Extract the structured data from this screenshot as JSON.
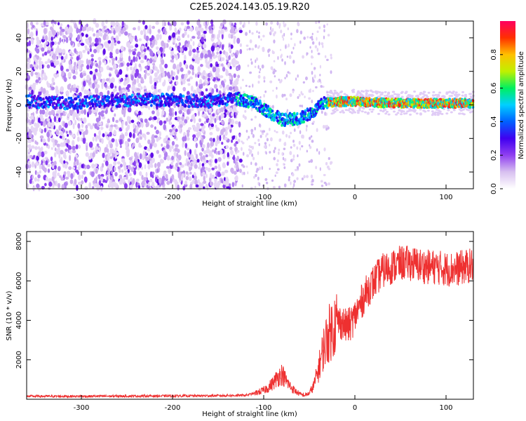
{
  "title": "C2E5.2024.143.05.19.R20",
  "chart_data": [
    {
      "type": "heatmap",
      "xlabel": "Height of straight line (km)",
      "ylabel": "Frequency (Hz)",
      "xlim": [
        -360,
        130
      ],
      "ylim": [
        -50,
        50
      ],
      "xticks": [
        -300,
        -200,
        -100,
        0,
        100
      ],
      "yticks": [
        -40,
        -20,
        0,
        20,
        40
      ],
      "colorbar": {
        "label": "Normalized spectral amplitude",
        "range": [
          0,
          1
        ],
        "ticks": [
          0.0,
          0.2,
          0.4,
          0.6,
          0.8
        ],
        "colors": [
          "#ffffff",
          "#d8c0f0",
          "#9040f0",
          "#4000f0",
          "#0060ff",
          "#00d0ff",
          "#00f060",
          "#c0f000",
          "#ffc000",
          "#ff3000",
          "#ff0060"
        ]
      },
      "ridge": [
        [
          -360,
          2
        ],
        [
          -320,
          1
        ],
        [
          -280,
          2
        ],
        [
          -240,
          3
        ],
        [
          -200,
          3
        ],
        [
          -160,
          2
        ],
        [
          -130,
          4
        ],
        [
          -110,
          1
        ],
        [
          -95,
          -4
        ],
        [
          -80,
          -9
        ],
        [
          -60,
          -8
        ],
        [
          -45,
          -4
        ],
        [
          -35,
          1
        ],
        [
          -20,
          2
        ],
        [
          0,
          2
        ],
        [
          40,
          1
        ],
        [
          80,
          1
        ],
        [
          130,
          1
        ]
      ]
    },
    {
      "type": "line",
      "xlabel": "Height of straight line (km)",
      "ylabel": "SNR (10 * v/v)",
      "xlim": [
        -360,
        130
      ],
      "ylim": [
        0,
        8500
      ],
      "xticks": [
        -300,
        -200,
        -100,
        0,
        100
      ],
      "yticks": [
        2000,
        4000,
        6000,
        8000
      ],
      "color": "#ee3030",
      "series": [
        {
          "x": [
            -360,
            -300,
            -250,
            -200,
            -150,
            -120,
            -110,
            -100,
            -95,
            -90,
            -85,
            -80,
            -75,
            -70,
            -65,
            -60,
            -55,
            -50,
            -45,
            -40,
            -35,
            -30,
            -25,
            -20,
            -15,
            -10,
            -5,
            0,
            5,
            10,
            15,
            20,
            25,
            30,
            40,
            50,
            60,
            70,
            80,
            90,
            100,
            110,
            120,
            130
          ],
          "values": [
            150,
            150,
            160,
            170,
            180,
            200,
            300,
            450,
            600,
            800,
            1100,
            1300,
            900,
            600,
            400,
            250,
            200,
            300,
            700,
            1500,
            2500,
            3200,
            3600,
            4000,
            3900,
            3700,
            3800,
            4200,
            4700,
            5200,
            5600,
            5900,
            6200,
            6500,
            6700,
            6900,
            6900,
            6800,
            6700,
            6700,
            6600,
            6600,
            6700,
            6800
          ]
        }
      ]
    }
  ]
}
